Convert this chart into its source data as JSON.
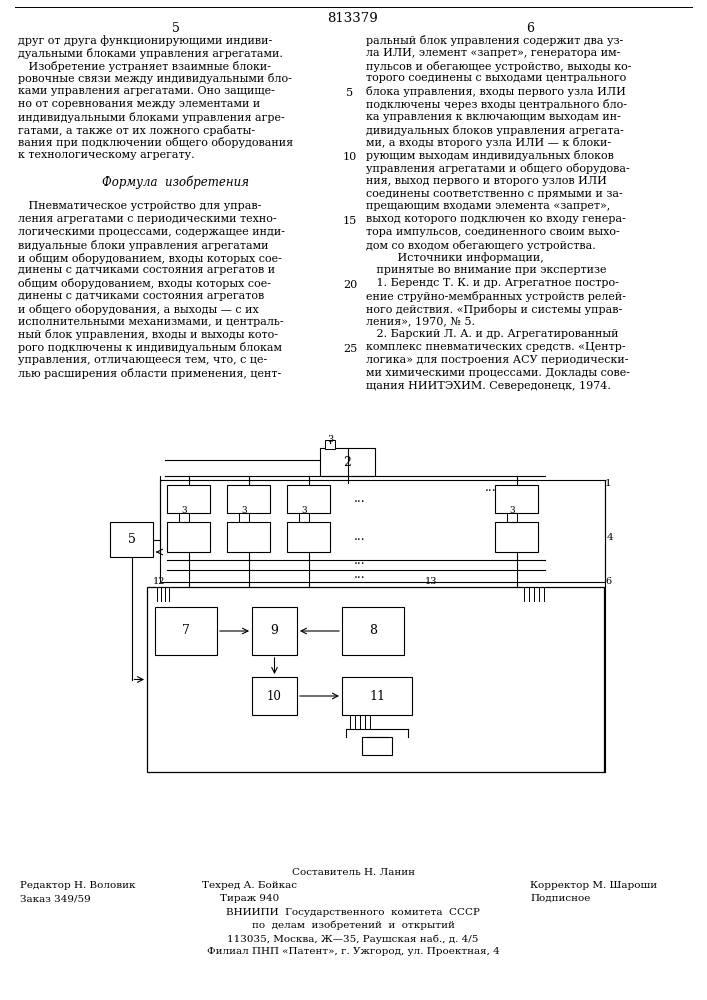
{
  "patent_number": "813379",
  "col_left_num": "5",
  "col_right_num": "6",
  "bg_color": "#ffffff",
  "text_color": "#000000",
  "left_col_lines": [
    "друг от друга функционирующими индиви-",
    "дуальными блоками управления агрегатами.",
    "   Изобретение устраняет взаимные блоки-",
    "ровочные связи между индивидуальными бло-",
    "ками управления агрегатами. Оно защище-",
    "но от соревнования между элементами и",
    "индивидуальными блоками управления агре-",
    "гатами, а также от их ложного срабаты-",
    "вания при подключении общего оборудования",
    "к технологическому агрегату.",
    "",
    "      Формула  изобретения",
    "",
    "   Пневматическое устройство для управ-",
    "ления агрегатами с периодическими техно-",
    "логическими процессами, содержащее инди-",
    "видуальные блоки управления агрегатами",
    "и общим оборудованием, входы которых сое-",
    "динены с датчиками состояния агрегатов и",
    "общим оборудованием, входы которых сое-",
    "динены с датчиками состояния агрегатов",
    "и общего оборудования, а выходы — с их",
    "исполнительными механизмами, и централь-",
    "ный блок управления, входы и выходы кото-",
    "рого подключены к индивидуальным блокам",
    "управления, отличающееся тем, что, с це-",
    "лью расширения области применения, цент-"
  ],
  "right_col_lines": [
    "ральный блок управления содержит два уз-",
    "ла ИЛИ, элемент «запрет», генератора им-",
    "пульсов и обегающее устройство, выходы ко-",
    "торого соединены с выходами центрального",
    "блока управления, входы первого узла ИЛИ",
    "подключены через входы центрального бло-",
    "ка управления к включающим выходам ин-",
    "дивидуальных блоков управления агрегата-",
    "ми, а входы второго узла ИЛИ — к блоки-",
    "рующим выходам индивидуальных блоков",
    "управления агрегатами и общего оборудова-",
    "ния, выход первого и второго узлов ИЛИ",
    "соединены соответственно с прямыми и за-",
    "прещающим входами элемента «запрет»,",
    "выход которого подключен ко входу генера-",
    "тора импульсов, соединенного своим выхо-",
    "дом со входом обегающего устройства.",
    "         Источники информации,",
    "   принятые во внимание при экспертизе",
    "   1. Берендс Т. К. и др. Агрегатное постро-",
    "ение струйно-мембранных устройств релей-",
    "ного действия. «Приборы и системы управ-",
    "ления», 1970, № 5.",
    "   2. Барский Л. А. и др. Агрегатированный",
    "комплекс пневматических средств. «Центр-",
    "логика» для построения АСУ периодически-",
    "ми химическими процессами. Доклады сове-",
    "щания НИИТЭХИМ. Севередонецк, 1974."
  ],
  "line_num_rows": {
    "5": 5,
    "10": 10,
    "15": 15,
    "20": 20,
    "25": 25
  },
  "footer_composer": "Составитель Н. Ланин",
  "footer_editor": "Редактор Н. Воловик",
  "footer_techred": "Техред А. Бойкас",
  "footer_corrector": "Корректор М. Шароши",
  "footer_order": "Заказ 349/59",
  "footer_edition": "Тираж 940",
  "footer_signed": "Подписное",
  "footer_vniipи": "ВНИИПИ  Государственного  комитета  СССР",
  "footer_affairs": "по  делам  изобретений  и  открытий",
  "footer_address": "113035, Москва, Ж—35, Раушская наб., д. 4/5",
  "footer_filial": "Филиал ПНП «Патент», г. Ужгород, ул. Проектная, 4"
}
